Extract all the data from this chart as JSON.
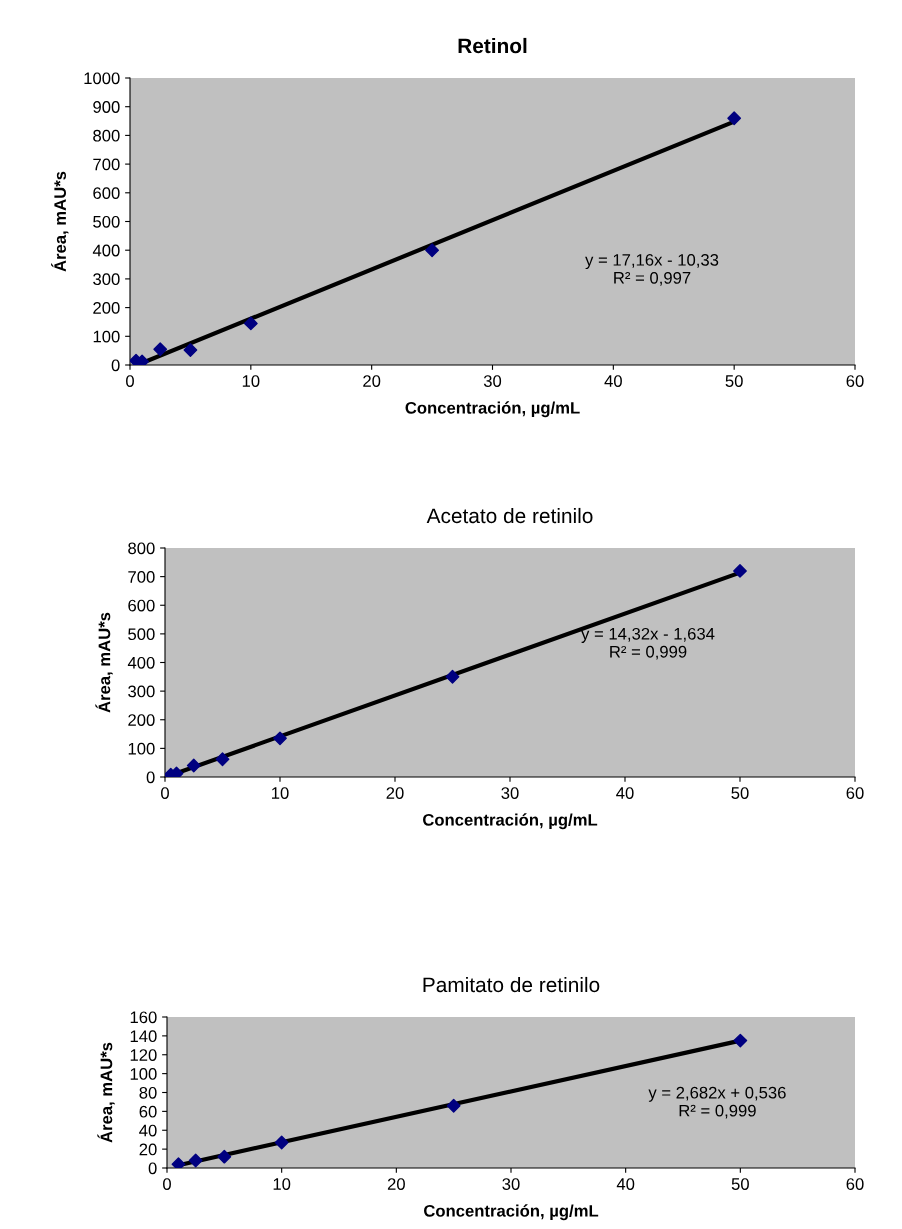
{
  "chart_data": [
    {
      "type": "scatter",
      "title": "Retinol",
      "xlabel": "Concentración, µg/mL",
      "ylabel": "Área, mAU*s",
      "grid": false,
      "legend": false,
      "xlim": [
        0,
        60
      ],
      "xticks": [
        0,
        10,
        20,
        30,
        40,
        50,
        60
      ],
      "ylim": [
        0,
        1000
      ],
      "yticks": [
        0,
        100,
        200,
        300,
        400,
        500,
        600,
        700,
        800,
        900,
        1000
      ],
      "series": [
        {
          "color": "#000080",
          "marker": "diamond",
          "x": [
            0.5,
            1,
            2.5,
            5,
            10,
            25,
            50
          ],
          "values": [
            15,
            12,
            55,
            52,
            145,
            400,
            860
          ]
        },
        {
          "type": "line",
          "color": "#000000",
          "x": [
            0.6,
            50
          ],
          "values": [
            0,
            848
          ]
        }
      ],
      "annotations": [
        "y = 17,16x - 10,33\nR² = 0,997"
      ]
    },
    {
      "type": "scatter",
      "title": "Acetato de retinilo",
      "xlabel": "Concentración, µg/mL",
      "ylabel": "Área, mAU*s",
      "grid": false,
      "legend": false,
      "xlim": [
        0,
        60
      ],
      "xticks": [
        0,
        10,
        20,
        30,
        40,
        50,
        60
      ],
      "ylim": [
        0,
        800
      ],
      "yticks": [
        0,
        100,
        200,
        300,
        400,
        500,
        600,
        700,
        800
      ],
      "series": [
        {
          "color": "#000080",
          "marker": "diamond",
          "x": [
            0.5,
            1,
            2.5,
            5,
            10,
            25,
            50
          ],
          "values": [
            8,
            12,
            40,
            62,
            135,
            350,
            720
          ]
        },
        {
          "type": "line",
          "color": "#000000",
          "x": [
            0.5,
            50
          ],
          "values": [
            6,
            714
          ]
        }
      ],
      "annotations": [
        "y = 14,32x - 1,634\nR² = 0,999"
      ]
    },
    {
      "type": "scatter",
      "title": "Pamitato de retinilo",
      "xlabel": "Concentración, µg/mL",
      "ylabel": "Área, mAU*s",
      "grid": false,
      "legend": false,
      "xlim": [
        0,
        60
      ],
      "xticks": [
        0,
        10,
        20,
        30,
        40,
        50,
        60
      ],
      "ylim": [
        0,
        160
      ],
      "yticks": [
        0,
        20,
        40,
        60,
        80,
        100,
        120,
        140,
        160
      ],
      "series": [
        {
          "color": "#000080",
          "marker": "diamond",
          "x": [
            1,
            2.5,
            5,
            10,
            25,
            50
          ],
          "values": [
            4,
            8,
            12,
            27,
            66,
            135
          ]
        },
        {
          "type": "line",
          "color": "#000000",
          "x": [
            1,
            50
          ],
          "values": [
            3,
            135
          ]
        }
      ],
      "annotations": [
        "y = 2,682x + 0,536\nR² = 0,999"
      ]
    }
  ]
}
